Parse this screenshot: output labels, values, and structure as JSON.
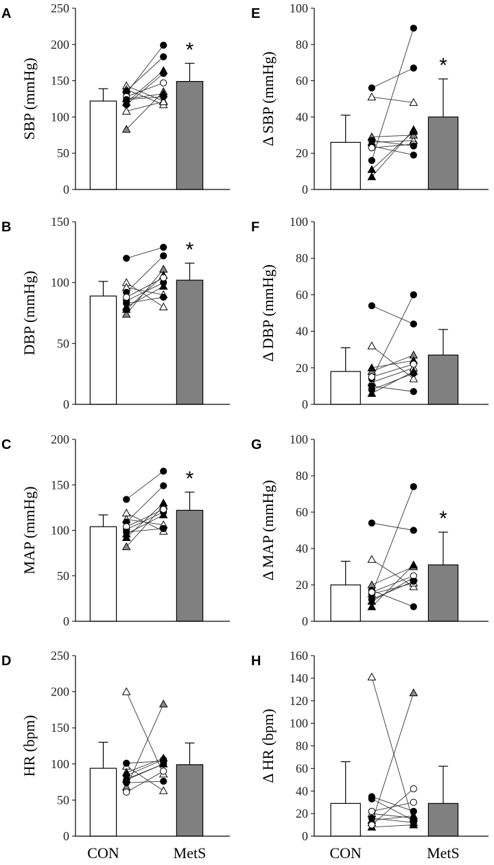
{
  "chart_data": [
    {
      "type": "bar",
      "panel": "A",
      "ylabel": "SBP (mmHg)",
      "categories": [
        "CON",
        "MetS"
      ],
      "ylim": [
        0,
        250
      ],
      "yticks": [
        0,
        50,
        100,
        150,
        200,
        250
      ],
      "values": [
        122,
        149
      ],
      "errors": [
        17,
        25
      ],
      "significant": "*",
      "pairs": [
        {
          "marker": "tri",
          "fill": "#ffffff",
          "con": 143,
          "mets": 122
        },
        {
          "marker": "tri",
          "fill": "#ffffff",
          "con": 138,
          "mets": 117
        },
        {
          "marker": "tri",
          "fill": "#ffffff",
          "con": 108,
          "mets": 121
        },
        {
          "marker": "tri",
          "fill": "#888888",
          "con": 83,
          "mets": 135
        },
        {
          "marker": "tri",
          "fill": "#000000",
          "con": 120,
          "mets": 164
        },
        {
          "marker": "tri",
          "fill": "#000000",
          "con": 125,
          "mets": 132
        },
        {
          "marker": "circle",
          "fill": "#000000",
          "con": 133,
          "mets": 199
        },
        {
          "marker": "circle",
          "fill": "#000000",
          "con": 136,
          "mets": 183
        },
        {
          "marker": "circle",
          "fill": "#000000",
          "con": 117,
          "mets": 160
        },
        {
          "marker": "circle",
          "fill": "#ffffff",
          "con": 128,
          "mets": 147
        },
        {
          "marker": "circle",
          "fill": "#000000",
          "con": 124,
          "mets": 128
        }
      ]
    },
    {
      "type": "bar",
      "panel": "B",
      "ylabel": "DBP (mmHg)",
      "categories": [
        "CON",
        "MetS"
      ],
      "ylim": [
        0,
        150
      ],
      "yticks": [
        0,
        50,
        100,
        150
      ],
      "values": [
        89,
        102
      ],
      "errors": [
        12,
        14
      ],
      "significant": "*",
      "pairs": [
        {
          "marker": "tri",
          "fill": "#ffffff",
          "con": 100,
          "mets": 80
        },
        {
          "marker": "tri",
          "fill": "#ffffff",
          "con": 96,
          "mets": 90
        },
        {
          "marker": "tri",
          "fill": "#888888",
          "con": 74,
          "mets": 111
        },
        {
          "marker": "tri",
          "fill": "#000000",
          "con": 78,
          "mets": 106
        },
        {
          "marker": "tri",
          "fill": "#000000",
          "con": 80,
          "mets": 97
        },
        {
          "marker": "circle",
          "fill": "#000000",
          "con": 120,
          "mets": 129
        },
        {
          "marker": "circle",
          "fill": "#000000",
          "con": 92,
          "mets": 122
        },
        {
          "marker": "circle",
          "fill": "#000000",
          "con": 85,
          "mets": 100
        },
        {
          "marker": "circle",
          "fill": "#ffffff",
          "con": 88,
          "mets": 104
        },
        {
          "marker": "circle",
          "fill": "#000000",
          "con": 83,
          "mets": 88
        }
      ]
    },
    {
      "type": "bar",
      "panel": "C",
      "ylabel": "MAP (mmHg)",
      "categories": [
        "CON",
        "MetS"
      ],
      "ylim": [
        0,
        200
      ],
      "yticks": [
        0,
        50,
        100,
        150,
        200
      ],
      "values": [
        104,
        122
      ],
      "errors": [
        13,
        20
      ],
      "significant": "*",
      "pairs": [
        {
          "marker": "tri",
          "fill": "#ffffff",
          "con": 119,
          "mets": 99
        },
        {
          "marker": "tri",
          "fill": "#ffffff",
          "con": 112,
          "mets": 106
        },
        {
          "marker": "tri",
          "fill": "#888888",
          "con": 82,
          "mets": 127
        },
        {
          "marker": "tri",
          "fill": "#000000",
          "con": 92,
          "mets": 130
        },
        {
          "marker": "tri",
          "fill": "#000000",
          "con": 96,
          "mets": 117
        },
        {
          "marker": "circle",
          "fill": "#000000",
          "con": 134,
          "mets": 165
        },
        {
          "marker": "circle",
          "fill": "#000000",
          "con": 109,
          "mets": 149
        },
        {
          "marker": "circle",
          "fill": "#000000",
          "con": 101,
          "mets": 120
        },
        {
          "marker": "circle",
          "fill": "#ffffff",
          "con": 104,
          "mets": 123
        },
        {
          "marker": "circle",
          "fill": "#000000",
          "con": 98,
          "mets": 102
        }
      ]
    },
    {
      "type": "bar",
      "panel": "D",
      "ylabel": "HR (bpm)",
      "categories": [
        "CON",
        "MetS"
      ],
      "ylim": [
        0,
        250
      ],
      "yticks": [
        0,
        50,
        100,
        150,
        200,
        250
      ],
      "values": [
        94,
        99
      ],
      "errors": [
        36,
        30
      ],
      "significant": "",
      "pairs": [
        {
          "marker": "tri",
          "fill": "#ffffff",
          "con": 200,
          "mets": 86
        },
        {
          "marker": "tri",
          "fill": "#ffffff",
          "con": 97,
          "mets": 63
        },
        {
          "marker": "tri",
          "fill": "#888888",
          "con": 68,
          "mets": 183
        },
        {
          "marker": "tri",
          "fill": "#000000",
          "con": 79,
          "mets": 100
        },
        {
          "marker": "tri",
          "fill": "#000000",
          "con": 88,
          "mets": 108
        },
        {
          "marker": "circle",
          "fill": "#000000",
          "con": 101,
          "mets": 104
        },
        {
          "marker": "circle",
          "fill": "#000000",
          "con": 84,
          "mets": 106
        },
        {
          "marker": "circle",
          "fill": "#000000",
          "con": 74,
          "mets": 76
        },
        {
          "marker": "circle",
          "fill": "#ffffff",
          "con": 61,
          "mets": 90
        },
        {
          "marker": "circle",
          "fill": "#000000",
          "con": 78,
          "mets": 100
        }
      ]
    },
    {
      "type": "bar",
      "panel": "E",
      "ylabel": "Δ SBP (mmHg)",
      "categories": [
        "CON",
        "MetS"
      ],
      "ylim": [
        0,
        100
      ],
      "yticks": [
        0,
        20,
        40,
        60,
        80,
        100
      ],
      "values": [
        26,
        40
      ],
      "errors": [
        15,
        21
      ],
      "significant": "*",
      "pairs": [
        {
          "marker": "tri",
          "fill": "#ffffff",
          "con": 51,
          "mets": 48
        },
        {
          "marker": "tri",
          "fill": "#ffffff",
          "con": 26,
          "mets": 27
        },
        {
          "marker": "tri",
          "fill": "#888888",
          "con": 29,
          "mets": 30
        },
        {
          "marker": "tri",
          "fill": "#000000",
          "con": 7,
          "mets": 33
        },
        {
          "marker": "tri",
          "fill": "#000000",
          "con": 11,
          "mets": 32
        },
        {
          "marker": "circle",
          "fill": "#000000",
          "con": 56,
          "mets": 67
        },
        {
          "marker": "circle",
          "fill": "#000000",
          "con": 16,
          "mets": 89
        },
        {
          "marker": "circle",
          "fill": "#000000",
          "con": 24,
          "mets": 19
        },
        {
          "marker": "circle",
          "fill": "#ffffff",
          "con": 23,
          "mets": 25
        },
        {
          "marker": "circle",
          "fill": "#000000",
          "con": 27,
          "mets": 24
        }
      ]
    },
    {
      "type": "bar",
      "panel": "F",
      "ylabel": "Δ DBP (mmHg)",
      "categories": [
        "CON",
        "MetS"
      ],
      "ylim": [
        0,
        100
      ],
      "yticks": [
        0,
        20,
        40,
        60,
        80,
        100
      ],
      "values": [
        18,
        27
      ],
      "errors": [
        13,
        14
      ],
      "significant": "",
      "pairs": [
        {
          "marker": "tri",
          "fill": "#ffffff",
          "con": 32,
          "mets": 14
        },
        {
          "marker": "tri",
          "fill": "#ffffff",
          "con": 12,
          "mets": 20
        },
        {
          "marker": "tri",
          "fill": "#888888",
          "con": 18,
          "mets": 27
        },
        {
          "marker": "tri",
          "fill": "#000000",
          "con": 20,
          "mets": 24
        },
        {
          "marker": "tri",
          "fill": "#000000",
          "con": 6,
          "mets": 18
        },
        {
          "marker": "circle",
          "fill": "#000000",
          "con": 54,
          "mets": 44
        },
        {
          "marker": "circle",
          "fill": "#000000",
          "con": 14,
          "mets": 60
        },
        {
          "marker": "circle",
          "fill": "#000000",
          "con": 10,
          "mets": 7
        },
        {
          "marker": "circle",
          "fill": "#ffffff",
          "con": 15,
          "mets": 22
        },
        {
          "marker": "circle",
          "fill": "#000000",
          "con": 8,
          "mets": 17
        }
      ]
    },
    {
      "type": "bar",
      "panel": "G",
      "ylabel": "Δ MAP (mmHg)",
      "categories": [
        "CON",
        "MetS"
      ],
      "ylim": [
        0,
        100
      ],
      "yticks": [
        0,
        20,
        40,
        60,
        80,
        100
      ],
      "values": [
        20,
        31
      ],
      "errors": [
        13,
        18
      ],
      "significant": "*",
      "pairs": [
        {
          "marker": "tri",
          "fill": "#ffffff",
          "con": 34,
          "mets": 19
        },
        {
          "marker": "tri",
          "fill": "#ffffff",
          "con": 15,
          "mets": 21
        },
        {
          "marker": "tri",
          "fill": "#888888",
          "con": 20,
          "mets": 30
        },
        {
          "marker": "tri",
          "fill": "#000000",
          "con": 8,
          "mets": 31
        },
        {
          "marker": "tri",
          "fill": "#000000",
          "con": 11,
          "mets": 24
        },
        {
          "marker": "circle",
          "fill": "#000000",
          "con": 54,
          "mets": 50
        },
        {
          "marker": "circle",
          "fill": "#000000",
          "con": 15,
          "mets": 74
        },
        {
          "marker": "circle",
          "fill": "#000000",
          "con": 17,
          "mets": 8
        },
        {
          "marker": "circle",
          "fill": "#ffffff",
          "con": 16,
          "mets": 25
        },
        {
          "marker": "circle",
          "fill": "#000000",
          "con": 12,
          "mets": 22
        }
      ]
    },
    {
      "type": "bar",
      "panel": "H",
      "ylabel": "Δ HR (bpm)",
      "categories": [
        "CON",
        "MetS"
      ],
      "ylim": [
        0,
        160
      ],
      "yticks": [
        0,
        20,
        40,
        60,
        80,
        100,
        120,
        140,
        160
      ],
      "values": [
        29,
        29
      ],
      "errors": [
        37,
        33
      ],
      "significant": "",
      "pairs": [
        {
          "marker": "tri",
          "fill": "#ffffff",
          "con": 141,
          "mets": 12
        },
        {
          "marker": "tri",
          "fill": "#ffffff",
          "con": 20,
          "mets": 16
        },
        {
          "marker": "tri",
          "fill": "#888888",
          "con": 12,
          "mets": 127
        },
        {
          "marker": "tri",
          "fill": "#000000",
          "con": 8,
          "mets": 10
        },
        {
          "marker": "tri",
          "fill": "#000000",
          "con": 14,
          "mets": 18
        },
        {
          "marker": "circle",
          "fill": "#000000",
          "con": 35,
          "mets": 22
        },
        {
          "marker": "circle",
          "fill": "#000000",
          "con": 33,
          "mets": 14
        },
        {
          "marker": "circle",
          "fill": "#000000",
          "con": 16,
          "mets": 12
        },
        {
          "marker": "circle",
          "fill": "#ffffff",
          "con": 10,
          "mets": 42
        },
        {
          "marker": "circle",
          "fill": "#ffffff",
          "con": 22,
          "mets": 30
        }
      ]
    }
  ],
  "colors": {
    "con_bar": "#ffffff",
    "mets_bar": "#808080",
    "axis": "#000000",
    "line": "#333333"
  }
}
